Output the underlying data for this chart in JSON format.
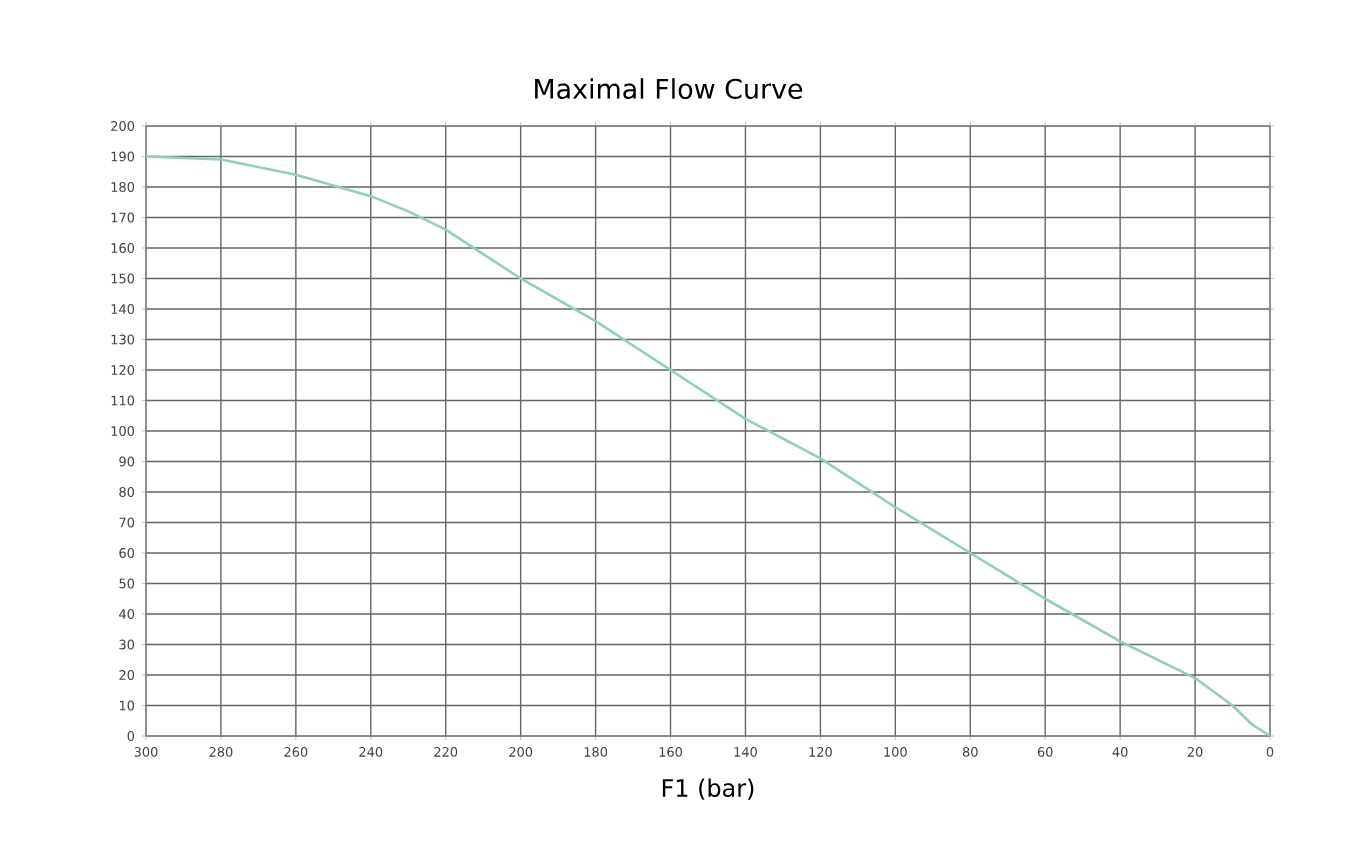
{
  "chart_data": {
    "type": "line",
    "title": "Maximal Flow Curve",
    "xlabel": "F1 (bar)",
    "x": [
      300,
      280,
      260,
      240,
      230,
      220,
      200,
      180,
      160,
      140,
      120,
      100,
      80,
      60,
      40,
      20,
      10,
      5,
      0
    ],
    "series": [
      {
        "color": "#8fcfc0",
        "values": [
          190,
          189,
          184,
          177,
          172,
          166,
          150,
          136,
          120,
          104,
          91,
          75,
          60,
          45,
          31,
          19,
          10,
          4,
          0
        ]
      }
    ],
    "xlim": [
      300,
      0
    ],
    "ylim": [
      0,
      200
    ],
    "xticks": [
      300,
      280,
      260,
      240,
      220,
      200,
      180,
      160,
      140,
      120,
      100,
      80,
      60,
      40,
      20,
      0
    ],
    "yticks": [
      0,
      10,
      20,
      30,
      40,
      50,
      60,
      70,
      80,
      90,
      100,
      110,
      120,
      130,
      140,
      150,
      160,
      170,
      180,
      190,
      200
    ],
    "grid": true,
    "marker": "none",
    "line_style": "solid"
  }
}
